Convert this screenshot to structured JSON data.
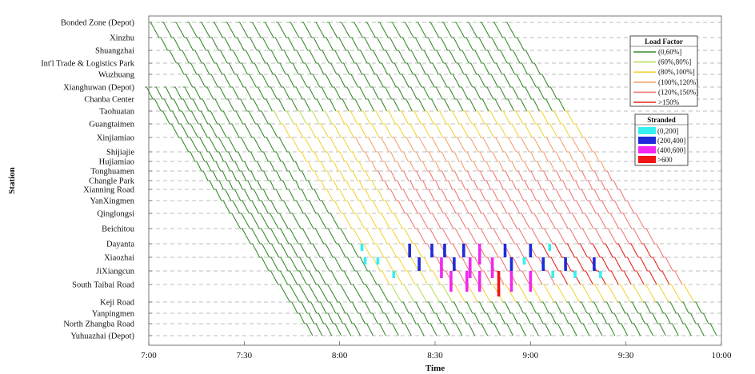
{
  "chart_data": {
    "type": "line",
    "xlabel": "Time",
    "ylabel": "Station",
    "x_ticks": [
      "7:00",
      "7:30",
      "8:00",
      "8:30",
      "9:00",
      "9:30",
      "10:00"
    ],
    "xlim_minutes": [
      0,
      180
    ],
    "grid": "horizontal dashed at each station",
    "stations": [
      "Bonded Zone (Depot)",
      "Xinzhu",
      "Shuangzhai",
      "Int'l Trade & Logistics Park",
      "Wuzhuang",
      "Xianghuwan (Depot)",
      "Chanba Center",
      "Taohuatan",
      "Guangtaimen",
      "Xinjiamiao",
      "Shijiajie",
      "Hujiamiao",
      "Tonghuamen",
      "Changle Park",
      "Xianning Road",
      "YanXingmen",
      "Qinglongsi",
      "Beichitou",
      "Dayanta",
      "Xiaozhai",
      "JiXiangcun",
      "South Taibai Road",
      "Keji Road",
      "Yanpingmen",
      "North Zhangba Road",
      "Yuhuazhai (Depot)"
    ],
    "load_factor_legend": {
      "title": "Load Factor",
      "entries": [
        {
          "label": "(0,60%]",
          "color": "#3a8a2e"
        },
        {
          "label": "(60%,80%]",
          "color": "#b8e05a"
        },
        {
          "label": "(80%,100%]",
          "color": "#f2d33a"
        },
        {
          "label": "(100%,120%]",
          "color": "#f2a271"
        },
        {
          "label": "(120%,150%]",
          "color": "#ee7a74"
        },
        {
          "label": ">150%",
          "color": "#e3241b"
        }
      ]
    },
    "stranded_legend": {
      "title": "Stranded",
      "entries": [
        {
          "label": "(0,200]",
          "color": "#35f0f0"
        },
        {
          "label": "(200,400]",
          "color": "#1f2bd8"
        },
        {
          "label": "(400,600]",
          "color": "#f028f0"
        },
        {
          "label": ">600",
          "color": "#f01414"
        }
      ]
    },
    "trains": {
      "short_turn_start_minutes": [
        -15,
        -12,
        -9,
        -6,
        -3
      ],
      "full_start_first_minute": 0,
      "full_start_last_minute": 112,
      "headway_minutes": 4,
      "direction": "Bonded Zone (Depot) to Yuhuazhai (Depot)",
      "travel_time_full_minutes": 66.5
    },
    "peak_window_minutes": {
      "yellow": [
        20,
        150
      ],
      "salmon": [
        40,
        130
      ],
      "red_core": [
        75,
        110
      ]
    },
    "stranded_bars": [
      {
        "station": "Dayanta",
        "minute": 67,
        "level": 0
      },
      {
        "station": "Xiaozhai",
        "minute": 68,
        "level": 0
      },
      {
        "station": "Xiaozhai",
        "minute": 72,
        "level": 0
      },
      {
        "station": "JiXiangcun",
        "minute": 77,
        "level": 0
      },
      {
        "station": "Dayanta",
        "minute": 82,
        "level": 1
      },
      {
        "station": "Xiaozhai",
        "minute": 85,
        "level": 1
      },
      {
        "station": "Dayanta",
        "minute": 89,
        "level": 1
      },
      {
        "station": "Xiaozhai",
        "minute": 92,
        "level": 2
      },
      {
        "station": "Dayanta",
        "minute": 93,
        "level": 1
      },
      {
        "station": "Xiaozhai",
        "minute": 96,
        "level": 1
      },
      {
        "station": "JiXiangcun",
        "minute": 95,
        "level": 2
      },
      {
        "station": "Dayanta",
        "minute": 99,
        "level": 1
      },
      {
        "station": "Xiaozhai",
        "minute": 101,
        "level": 2
      },
      {
        "station": "JiXiangcun",
        "minute": 100,
        "level": 2
      },
      {
        "station": "Dayanta",
        "minute": 104,
        "level": 2
      },
      {
        "station": "JiXiangcun",
        "minute": 104,
        "level": 2
      },
      {
        "station": "Xiaozhai",
        "minute": 108,
        "level": 2
      },
      {
        "station": "JiXiangcun",
        "minute": 110,
        "level": 3
      },
      {
        "station": "Dayanta",
        "minute": 112,
        "level": 1
      },
      {
        "station": "Xiaozhai",
        "minute": 114,
        "level": 1
      },
      {
        "station": "JiXiangcun",
        "minute": 114,
        "level": 2
      },
      {
        "station": "Dayanta",
        "minute": 120,
        "level": 1
      },
      {
        "station": "Xiaozhai",
        "minute": 118,
        "level": 0
      },
      {
        "station": "JiXiangcun",
        "minute": 120,
        "level": 2
      },
      {
        "station": "Dayanta",
        "minute": 126,
        "level": 0
      },
      {
        "station": "Xiaozhai",
        "minute": 124,
        "level": 1
      },
      {
        "station": "JiXiangcun",
        "minute": 127,
        "level": 0
      },
      {
        "station": "Xiaozhai",
        "minute": 131,
        "level": 1
      },
      {
        "station": "JiXiangcun",
        "minute": 134,
        "level": 0
      },
      {
        "station": "Xiaozhai",
        "minute": 140,
        "level": 1
      },
      {
        "station": "JiXiangcun",
        "minute": 142,
        "level": 0
      }
    ]
  }
}
